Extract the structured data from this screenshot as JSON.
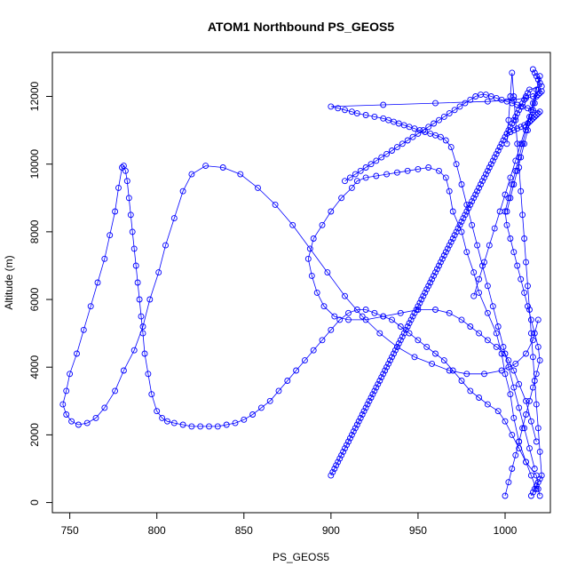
{
  "chart_data": {
    "type": "scatter",
    "title": "ATOM1 Northbound PS_GEOS5",
    "xlabel": "PS_GEOS5",
    "ylabel": "Altitude (m)",
    "xlim": [
      740,
      1026
    ],
    "ylim": [
      -300,
      13300
    ],
    "x_ticks": [
      750,
      800,
      850,
      900,
      950,
      1000
    ],
    "y_ticks": [
      0,
      2000,
      4000,
      6000,
      8000,
      10000,
      12000
    ],
    "grid": false,
    "legend": "none",
    "style": {
      "color": "#0000ff",
      "marker": "open-circle",
      "connected": true
    },
    "series": [
      {
        "x": [
          1020,
          1019,
          1018,
          1012,
          1008,
          1005,
          1003,
          1000,
          998,
          995,
          990,
          985,
          982,
          978,
          975,
          970,
          968,
          966,
          962,
          956,
          950,
          944,
          938,
          932,
          926,
          920,
          915,
          912,
          906,
          900,
          895,
          890,
          887,
          889,
          892,
          896,
          902,
          910,
          920,
          930,
          940,
          950,
          960,
          968,
          975,
          980,
          985,
          990,
          995,
          1000,
          1002,
          1005,
          1008,
          1012,
          1015,
          1018
        ],
        "y": [
          200,
          400,
          800,
          1200,
          1800,
          2500,
          3200,
          3800,
          4400,
          5000,
          5600,
          6200,
          6800,
          7400,
          8000,
          8600,
          9200,
          9600,
          9800,
          9900,
          9850,
          9800,
          9750,
          9700,
          9650,
          9600,
          9500,
          9300,
          9000,
          8600,
          8200,
          7800,
          7200,
          6700,
          6200,
          5800,
          5500,
          5400,
          5400,
          5500,
          5600,
          5700,
          5700,
          5600,
          5400,
          5200,
          5000,
          4800,
          4600,
          4400,
          4200,
          3900,
          3500,
          3000,
          2400,
          1800
        ]
      },
      {
        "x": [
          1018,
          1015,
          1012,
          1008,
          1004,
          1000,
          996,
          990,
          985,
          980,
          975,
          970,
          965,
          960,
          955,
          950,
          945,
          940,
          935,
          930,
          925,
          920,
          915,
          910,
          905,
          900,
          895,
          890,
          885,
          880,
          875,
          870,
          865,
          860,
          855,
          850,
          845,
          840,
          835,
          830,
          825,
          820,
          815,
          810,
          806,
          803,
          800,
          797,
          795,
          793,
          792,
          791,
          790,
          789,
          788,
          787,
          786,
          785,
          784,
          783,
          782,
          781,
          780,
          778,
          776,
          773,
          770,
          766,
          762,
          758,
          754,
          750,
          748,
          746,
          748,
          751,
          755,
          760,
          765,
          770,
          776,
          781,
          787,
          792,
          796,
          801,
          805,
          810,
          815,
          820,
          828,
          838,
          848,
          858,
          868,
          878,
          888,
          898,
          908,
          918,
          928,
          938,
          948,
          958,
          968,
          978,
          988,
          998,
          1006,
          1012,
          1016,
          1019
        ],
        "y": [
          400,
          800,
          1200,
          1600,
          2000,
          2400,
          2700,
          2900,
          3100,
          3300,
          3600,
          3900,
          4200,
          4400,
          4600,
          4800,
          5000,
          5200,
          5400,
          5500,
          5600,
          5700,
          5700,
          5600,
          5400,
          5100,
          4800,
          4500,
          4200,
          3900,
          3600,
          3300,
          3000,
          2800,
          2600,
          2450,
          2350,
          2300,
          2250,
          2250,
          2250,
          2250,
          2300,
          2350,
          2400,
          2500,
          2700,
          3200,
          3800,
          4400,
          5000,
          5500,
          6000,
          6500,
          7000,
          7500,
          8000,
          8500,
          9000,
          9500,
          9800,
          9950,
          9900,
          9300,
          8600,
          7900,
          7200,
          6500,
          5800,
          5100,
          4400,
          3800,
          3300,
          2900,
          2600,
          2400,
          2300,
          2350,
          2500,
          2800,
          3300,
          3900,
          4500,
          5200,
          6000,
          6800,
          7600,
          8400,
          9200,
          9700,
          9950,
          9900,
          9700,
          9300,
          8800,
          8200,
          7500,
          6800,
          6100,
          5500,
          5000,
          4600,
          4300,
          4100,
          3900,
          3800,
          3800,
          3900,
          4100,
          4400,
          4800,
          5400
        ]
      },
      {
        "x": [
          1017,
          1014,
          1011,
          1008,
          1005,
          1002,
          999,
          996,
          993,
          990,
          987,
          984,
          981,
          978,
          975,
          972,
          969,
          966,
          963,
          960,
          957,
          954,
          951,
          948,
          945,
          942,
          939,
          936,
          933,
          930,
          925,
          920,
          915,
          912,
          908,
          904,
          900,
          930,
          960,
          990,
          1005,
          1012,
          1016,
          1019,
          1020,
          1021,
          1018,
          1015,
          1012,
          1009,
          1006,
          1003,
          1000,
          997,
          994,
          991,
          988,
          985,
          982
        ],
        "y": [
          1000,
          1600,
          2200,
          2800,
          3400,
          4000,
          4600,
          5200,
          5800,
          6400,
          7000,
          7600,
          8200,
          8800,
          9400,
          10000,
          10500,
          10700,
          10800,
          10850,
          10900,
          10950,
          11000,
          11050,
          11100,
          11150,
          11200,
          11250,
          11300,
          11350,
          11400,
          11450,
          11500,
          11550,
          11600,
          11650,
          11700,
          11750,
          11800,
          11850,
          11900,
          11950,
          12000,
          12050,
          12100,
          12150,
          12000,
          11600,
          11100,
          10600,
          10100,
          9600,
          9100,
          8600,
          8100,
          7600,
          7100,
          6600,
          6100
        ]
      },
      {
        "x": [
          1001,
          1003,
          1005,
          1007,
          1009,
          1011,
          1013,
          1014,
          1015,
          1016,
          1017,
          1018,
          1019,
          1020,
          1016,
          1013,
          1010,
          1007,
          1004,
          1001,
          998,
          995,
          992,
          989,
          986,
          983,
          980,
          977,
          974,
          971,
          968,
          965,
          962,
          959,
          956,
          953,
          950,
          947,
          944,
          941,
          938,
          935,
          932,
          929,
          926,
          923,
          920,
          917,
          914,
          911,
          908
        ],
        "y": [
          10900,
          10950,
          11000,
          11050,
          11100,
          11150,
          11200,
          11250,
          11300,
          11350,
          11400,
          11450,
          11500,
          11550,
          11600,
          11650,
          11700,
          11750,
          11800,
          11850,
          11900,
          11950,
          12000,
          12050,
          12050,
          12000,
          11900,
          11800,
          11700,
          11600,
          11500,
          11400,
          11300,
          11200,
          11100,
          11000,
          10900,
          10800,
          10700,
          10600,
          10500,
          10400,
          10300,
          10200,
          10100,
          10000,
          9900,
          9800,
          9700,
          9600,
          9500
        ]
      },
      {
        "x": [
          1016,
          1017,
          1018,
          1019,
          1020,
          1021,
          1014,
          1013,
          1012,
          1011,
          1010,
          1009,
          1008,
          1007,
          1006,
          1005,
          1004,
          1003,
          1002,
          1001,
          1000,
          999,
          998,
          997,
          996,
          995,
          994,
          993,
          992,
          991,
          990,
          989,
          988,
          987,
          986,
          985,
          984,
          983,
          982,
          981,
          980,
          979,
          978,
          977,
          976,
          975,
          974,
          973,
          972,
          971,
          970,
          969,
          968,
          967,
          966,
          965,
          964,
          963,
          962,
          961,
          960,
          959,
          958,
          957,
          956,
          955,
          954,
          953,
          952,
          951,
          950,
          949,
          948,
          947,
          946,
          945,
          944,
          943,
          942,
          941,
          940,
          939,
          938,
          937,
          936,
          935,
          934,
          933,
          932,
          931,
          930,
          929,
          928,
          927,
          926,
          925,
          924,
          923,
          922,
          921,
          920,
          919,
          918,
          917,
          916,
          915,
          914,
          913,
          912,
          911,
          910,
          909,
          908,
          907,
          906,
          905,
          904,
          903,
          902,
          901,
          900
        ],
        "y": [
          12800,
          12700,
          12600,
          12500,
          12400,
          12300,
          12200,
          12100,
          12000,
          11900,
          11800,
          11700,
          11600,
          11500,
          11400,
          11300,
          11200,
          11100,
          11000,
          10900,
          10800,
          10700,
          10600,
          10500,
          10400,
          10300,
          10200,
          10100,
          10000,
          9900,
          9800,
          9700,
          9600,
          9500,
          9400,
          9300,
          9200,
          9100,
          9000,
          8900,
          8800,
          8700,
          8600,
          8500,
          8400,
          8300,
          8200,
          8100,
          8000,
          7900,
          7800,
          7700,
          7600,
          7500,
          7400,
          7300,
          7200,
          7100,
          7000,
          6900,
          6800,
          6700,
          6600,
          6500,
          6400,
          6300,
          6200,
          6100,
          6000,
          5900,
          5800,
          5700,
          5600,
          5500,
          5400,
          5300,
          5200,
          5100,
          5000,
          4900,
          4800,
          4700,
          4600,
          4500,
          4400,
          4300,
          4200,
          4100,
          4000,
          3900,
          3800,
          3700,
          3600,
          3500,
          3400,
          3300,
          3200,
          3100,
          3000,
          2900,
          2800,
          2700,
          2600,
          2500,
          2400,
          2300,
          2200,
          2100,
          2000,
          1900,
          1800,
          1700,
          1600,
          1500,
          1400,
          1300,
          1200,
          1100,
          1000,
          900,
          800
        ]
      },
      {
        "x": [
          1000,
          1002,
          1004,
          1006,
          1008,
          1010,
          1012,
          1014,
          1016,
          1018,
          1020,
          1019,
          1017,
          1015,
          1013,
          1011,
          1009,
          1007,
          1005,
          1003,
          1001,
          1000,
          1002,
          1004,
          1006,
          1008,
          1010,
          1012,
          1014,
          1016,
          1018,
          1020,
          1019,
          1017,
          1015,
          1013,
          1011,
          1009,
          1007,
          1005,
          1003,
          1001
        ],
        "y": [
          200,
          600,
          1000,
          1400,
          1800,
          2200,
          2600,
          3000,
          3400,
          3800,
          4200,
          4600,
          5000,
          5400,
          5800,
          6200,
          6600,
          7000,
          7400,
          7800,
          8200,
          8600,
          9000,
          9400,
          9800,
          10200,
          10600,
          11000,
          11400,
          11800,
          12200,
          12600,
          12200,
          11800,
          11400,
          11000,
          10600,
          10200,
          9800,
          9400,
          9000,
          8600
        ]
      },
      {
        "x": [
          1015,
          1016,
          1017,
          1018,
          1019,
          1020,
          1021,
          1020,
          1019,
          1018,
          1017,
          1016,
          1015,
          1014,
          1013,
          1012,
          1011,
          1010,
          1009,
          1008,
          1007,
          1006,
          1005,
          1004,
          1003,
          1002,
          1001
        ],
        "y": [
          200,
          300,
          400,
          500,
          600,
          700,
          800,
          1500,
          2200,
          2900,
          3600,
          4300,
          5000,
          5700,
          6400,
          7100,
          7800,
          8500,
          9200,
          9900,
          10600,
          11300,
          12000,
          12700,
          12000,
          11300,
          10600
        ]
      }
    ]
  }
}
